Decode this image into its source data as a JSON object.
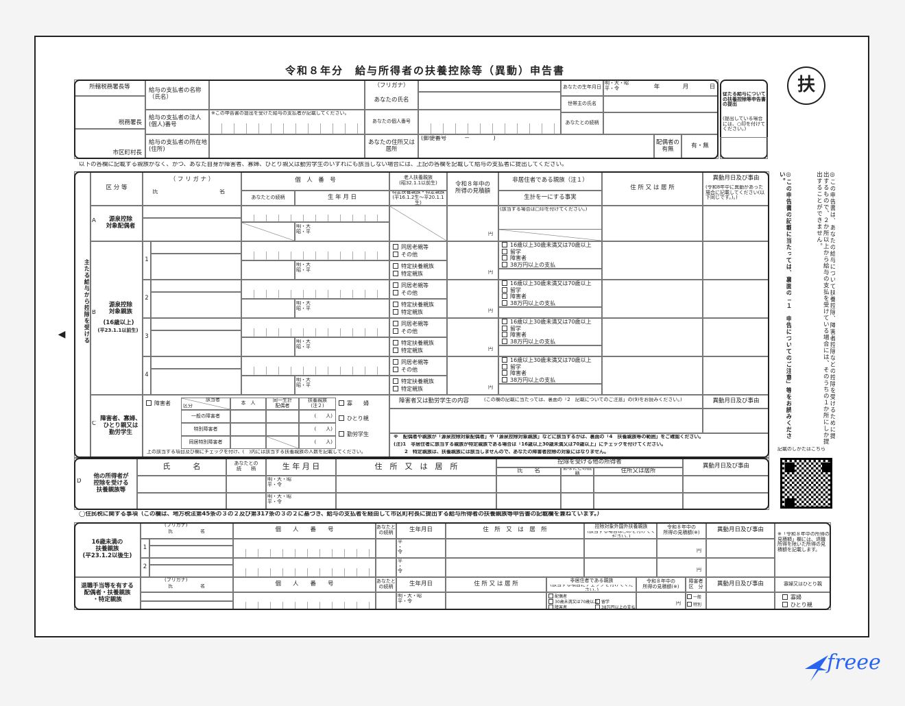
{
  "title": "令和８年分　給与所得者の扶養控除等（異動）申告書",
  "stamp": "扶",
  "header": {
    "tax_office": "所轄税務署長等",
    "tax_office_suffix": "税務署長",
    "city_suffix": "市区町村長",
    "payer_name_label": "給与の支払者の名称（氏名）",
    "payer_number_label": "給与の支払者の法人(個人)番号",
    "payer_number_note": "※この申告書の提出を受けた給与の支払者が記載してください。",
    "payer_address_label": "給与の支払者の所在地(住所)",
    "furigana_label": "（フリガナ）",
    "your_name_label": "あなたの氏名",
    "your_number_label": "あなたの個人番号",
    "your_address_label": "あなたの住所又は居所",
    "postal_label": "(郵便番号　　　－　　　　)",
    "birth_label": "あなたの生年月日",
    "era": "明・大・昭\n平・令",
    "ymd": [
      "年",
      "月",
      "日"
    ],
    "household_head_label": "世帯主の氏名",
    "relationship_label": "あなたとの続柄",
    "spouse_label": "配偶者の有無",
    "spouse_options": "有・無"
  },
  "side_box": {
    "title": "従たる給与についての扶養控除等申告書の提出",
    "note": "(提出している場合には、○印を付けてください。)"
  },
  "instruction": "以下の各欄に記載する親族がなく、かつ、あなた自身が障害者、寡婦、ひとり親又は勤労学生のいずれにも該当しない場合には、上記の各欄を記載して給与の支払者に提出してください。",
  "main": {
    "vertical_label": "主たる給与から控除を受ける",
    "cols": {
      "category": "区 分 等",
      "furigana": "（ フ リ ガ ナ ）",
      "name_l": "氏",
      "name_r": "名",
      "number": "個　人　番　号",
      "relationship": "あなたとの続柄",
      "birth": "生 年 月 日",
      "elderly": "老人扶養親族\n(昭32.1.1以前生)",
      "specific": "特定扶養親族・特定親族\n(平16.1.2生～平20.1.1生)",
      "income": "令和８年中の\n所得の見積額",
      "nonresident": "非居住者である親族（注１）",
      "livelihood": "生計を一にする事実",
      "address": "住 所 又 は 居 所",
      "change": "異動月日及び事由",
      "change_note": "(令和8年中に異動があった場合に記載してください(以下同じです。)。)"
    },
    "spouse": {
      "letter": "A",
      "label": "源泉控除\n対象配偶者",
      "era": "明・大\n昭・平",
      "nonresident_note": "(該当する場合は□印を付けてください。)",
      "yen": "円"
    },
    "dependents": {
      "letter": "B",
      "label": "源泉控除\n対象親族",
      "age": "(16歳以上)",
      "born": "(平23.1.1以前生)",
      "rows": [
        "1",
        "2",
        "3",
        "4"
      ],
      "era": "明・大\n昭・平",
      "elderly_options": [
        "同居老親等",
        "その他"
      ],
      "specific_options": [
        "特定扶養親族",
        "特定親族"
      ],
      "nonresident_options": [
        "16歳以上30歳未満又は70歳以上",
        "留学",
        "障害者",
        "38万円以上の支払"
      ],
      "yen": "円"
    },
    "disability": {
      "letter": "C",
      "label": "障害者、寡婦、\nひとり親又は\n勤労学生",
      "disabled": "障害者",
      "applicable": "該当者",
      "category": "区分",
      "self": "本　人",
      "same_spouse": "同一生計\n配偶者",
      "dependent": "扶養親族\n(注２)",
      "rows": [
        "一般の障害者",
        "特別障害者",
        "同居特別障害者"
      ],
      "persons": "(　　人)",
      "widow": "寡　　婦",
      "single_parent": "ひとり親",
      "working_student": "勤労学生",
      "check_note": "上の該当する項目及び欄にチェックを付け、(　)内には該当する扶養親族の人数を記載してください。",
      "content_label": "障害者又は勤労学生の内容",
      "content_note": "(この欄の記載に当たっては、裏面の「2　記載についてのご注意」の(9)をお読みください。)",
      "change": "異動月日及び事由",
      "notes": [
        "※　配偶者や親族が「源泉控除対象配偶者」や「源泉控除対象親族」などに該当するかは、裏面の「4　扶養親族等の範囲」をご確認ください。",
        "(注)1　非居住者に該当する親族が特定親族である場合は「16歳以上30歳未満又は70歳以上」にチェックを付けてください。",
        "2　特定親族は、扶養親族には該当しませんので、あなたの障害者控除の対象にはなりません。"
      ]
    }
  },
  "other": {
    "letter": "D",
    "label": "他の所得者が\n控除を受ける\n扶養親族等",
    "name": "氏　　　名",
    "relationship": "あなたとの\n続　　柄",
    "birth": "生 年 月 日",
    "address": "住　所　又　は　居　所",
    "other_earner": "控除を受ける他の所得者",
    "oe_name": "氏　　名",
    "oe_relationship": "あなたとの続柄",
    "oe_address": "住所又は居所",
    "change": "異動月日及び事由",
    "era": "明・大・昭\n平・令"
  },
  "resident": {
    "heading": "◯住民税に関する事項（この欄は、地方税法第45条の３の２及び第317条の３の２に基づき、給与の支払者を経由して市区町村長に提出する給与所得者の扶養親族等申告書の記載欄を兼ねています。）",
    "under16": {
      "label": "16歳未満の\n扶養親族\n(平23.1.2以後生)",
      "rows": [
        "1",
        "2"
      ],
      "era": "平\n・\n令"
    },
    "furigana": "(フリガナ)",
    "name_l": "氏",
    "name_r": "名",
    "number": "個　　人　　番　　号",
    "relationship": "あなたと\nの続柄",
    "birth": "生年月日",
    "address": "住　所　又　は　居　所",
    "foreign": "控除対象外国外扶養親族",
    "foreign_note": "(該当する場合は○印を付けてください。)",
    "income": "令和８年中の\n所得の見積額(※)",
    "change": "異動月日及び事由",
    "yen": "円",
    "note": "※「令和８年中の所得の見積額」欄には、退職所得を除いた所得の見積額を記載します。",
    "retire": {
      "label": "退職手当等を有する\n配偶者・扶養親族\n・特定親族",
      "era": "明・大・昭\n平・令",
      "address": "住 所 又 は 居 所",
      "nonresident": "非居住者である親族",
      "nonresident_note": "(該当する項目にチェックを付けてください。)",
      "options": [
        "配偶者",
        "30歳未満又は70歳以上",
        "障害者",
        "留学",
        "38万円以上の支払"
      ],
      "disabled_class": "障害者\n区　分",
      "disabled_options": [
        "一般",
        "特別"
      ],
      "widow_label": "寡婦又はひとり親",
      "widow_options": [
        "寡婦",
        "ひとり親"
      ]
    }
  },
  "side_notes": {
    "note1": "◎この申告書は、あなたの給与について扶養控除、障害者控除などの控除を受けるために提出するもので、２か所以上から給与の支払を受けている場合には、そのうちの１か所にしか提出することができません。",
    "note2": "◎この申告書の記載に当たっては、裏面の「１　申告についてのご注意」等をお読みください。",
    "qr_label": "記載のしかたはこちら"
  },
  "brand": {
    "name": "freee",
    "color": "#2864f0"
  },
  "icons": {
    "arrow": "arrow-left-icon",
    "qr": "qr-code-icon",
    "logo": "freee-bird-icon"
  }
}
